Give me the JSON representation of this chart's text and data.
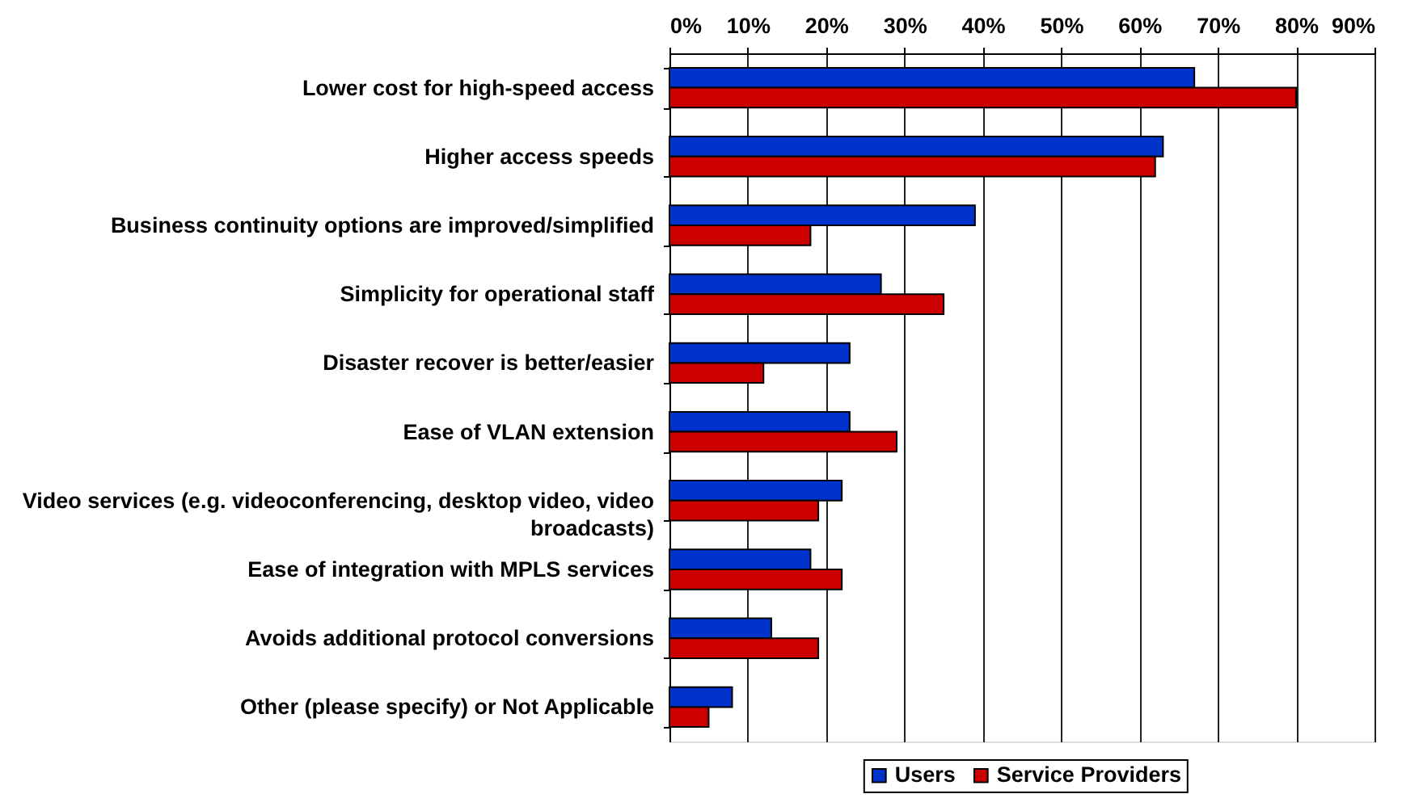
{
  "chart_data": {
    "type": "bar",
    "orientation": "horizontal",
    "categories": [
      "Lower cost for high-speed access",
      "Higher access speeds",
      "Business continuity options are improved/simplified",
      "Simplicity for operational staff",
      "Disaster recover is better/easier",
      "Ease of VLAN extension",
      "Video services (e.g. videoconferencing, desktop video, video broadcasts)",
      "Ease of integration with MPLS services",
      "Avoids additional protocol conversions",
      "Other (please specify) or Not Applicable"
    ],
    "series": [
      {
        "name": "Users",
        "color": "#0033cc",
        "values": [
          67,
          63,
          39,
          27,
          23,
          23,
          22,
          18,
          13,
          8
        ]
      },
      {
        "name": "Service Providers",
        "color": "#cc0000",
        "values": [
          80,
          62,
          18,
          35,
          12,
          29,
          19,
          22,
          19,
          5
        ]
      }
    ],
    "xlim": [
      0,
      90
    ],
    "xticks": [
      {
        "value": 0,
        "label": "0%"
      },
      {
        "value": 10,
        "label": "10%"
      },
      {
        "value": 20,
        "label": "20%"
      },
      {
        "value": 30,
        "label": "30%"
      },
      {
        "value": 40,
        "label": "40%"
      },
      {
        "value": 50,
        "label": "50%"
      },
      {
        "value": 60,
        "label": "60%"
      },
      {
        "value": 70,
        "label": "70%"
      },
      {
        "value": 80,
        "label": "80%"
      },
      {
        "value": 90,
        "label": "90%"
      }
    ],
    "grid": "x",
    "legend": "bottom"
  }
}
